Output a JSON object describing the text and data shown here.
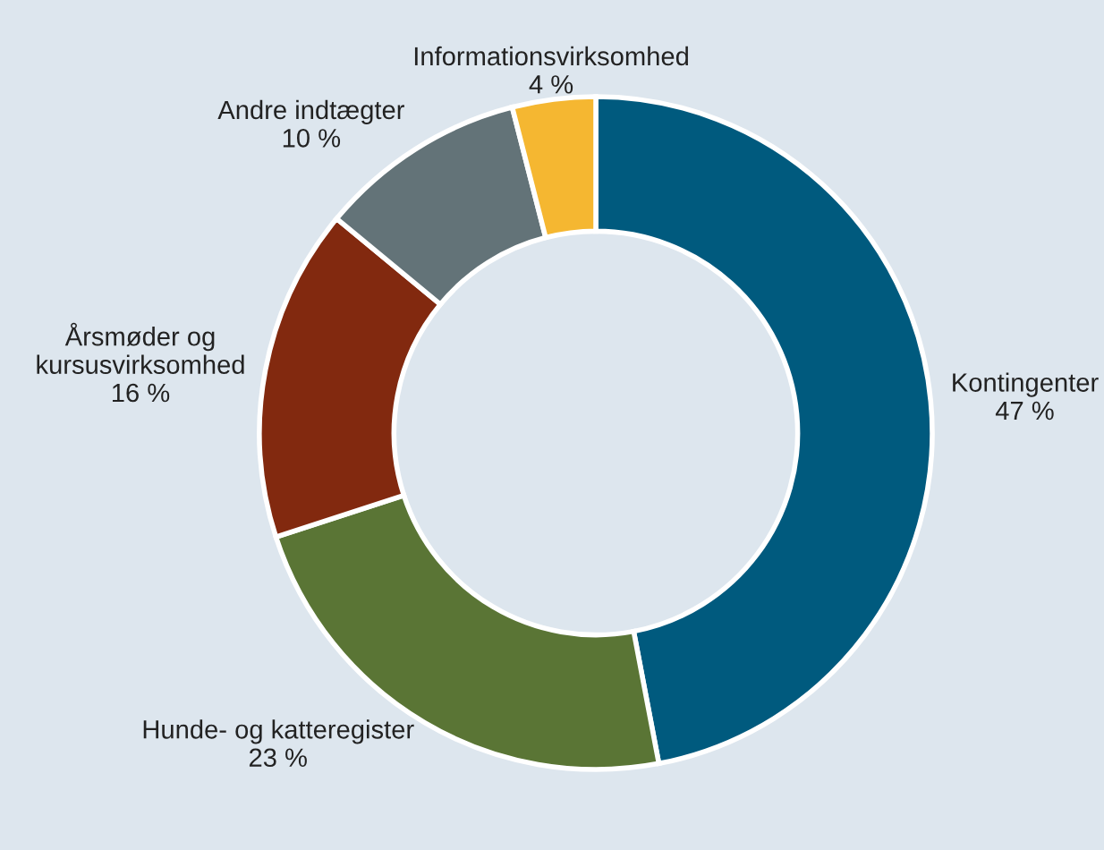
{
  "chart_data": {
    "type": "donut",
    "categories": [
      "Kontingenter",
      "Hunde- og katteregister",
      "Årsmøder og kursusvirksomhed",
      "Andre indtægter",
      "Informationsvirksomhed"
    ],
    "values": [
      47,
      23,
      16,
      10,
      4
    ],
    "value_labels": [
      "47 %",
      "23 %",
      "16 %",
      "10 %",
      "4 %"
    ],
    "colors": [
      "#005a7e",
      "#5a7535",
      "#82290f",
      "#637378",
      "#f5b731"
    ],
    "legend": false
  }
}
